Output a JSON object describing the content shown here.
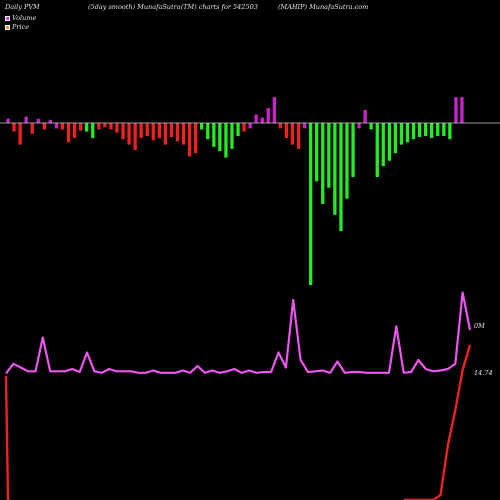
{
  "header": {
    "left": "Daily PVM",
    "smooth": "(5day smooth) MunafaSutra(TM) charts for 542503",
    "right": "(MAHIP) MunafaSutra.com"
  },
  "legend": {
    "volume_label": "Volume",
    "price_label": "Price",
    "volume_color": "#ee33ee",
    "price_color": "#e09a3a"
  },
  "labels": {
    "volume_axis": "0M",
    "price_axis": "14.74"
  },
  "colors": {
    "background": "#000000",
    "up_bar": "#cc22cc",
    "down_bar_red": "#ee2222",
    "down_bar_green": "#22ee22",
    "volume_line": "#ee55ee",
    "price_line": "#ee2222",
    "baseline": "#cccccc"
  },
  "chart_data": {
    "type": "bar",
    "note_units": "relative",
    "bars": [
      {
        "v": 4,
        "c": "m"
      },
      {
        "v": -8,
        "c": "r"
      },
      {
        "v": -20,
        "c": "r"
      },
      {
        "v": 6,
        "c": "m"
      },
      {
        "v": -10,
        "c": "r"
      },
      {
        "v": 4,
        "c": "m"
      },
      {
        "v": -6,
        "c": "r"
      },
      {
        "v": 3,
        "c": "m"
      },
      {
        "v": -5,
        "c": "m"
      },
      {
        "v": -6,
        "c": "r"
      },
      {
        "v": -18,
        "c": "r"
      },
      {
        "v": -14,
        "c": "r"
      },
      {
        "v": -7,
        "c": "r"
      },
      {
        "v": -8,
        "c": "g"
      },
      {
        "v": -14,
        "c": "g"
      },
      {
        "v": -6,
        "c": "r"
      },
      {
        "v": -4,
        "c": "r"
      },
      {
        "v": -6,
        "c": "r"
      },
      {
        "v": -9,
        "c": "r"
      },
      {
        "v": -15,
        "c": "r"
      },
      {
        "v": -20,
        "c": "r"
      },
      {
        "v": -25,
        "c": "r"
      },
      {
        "v": -14,
        "c": "r"
      },
      {
        "v": -12,
        "c": "r"
      },
      {
        "v": -16,
        "c": "r"
      },
      {
        "v": -14,
        "c": "r"
      },
      {
        "v": -20,
        "c": "r"
      },
      {
        "v": -13,
        "c": "r"
      },
      {
        "v": -17,
        "c": "r"
      },
      {
        "v": -20,
        "c": "r"
      },
      {
        "v": -31,
        "c": "r"
      },
      {
        "v": -28,
        "c": "r"
      },
      {
        "v": -6,
        "c": "g"
      },
      {
        "v": -15,
        "c": "g"
      },
      {
        "v": -22,
        "c": "g"
      },
      {
        "v": -26,
        "c": "g"
      },
      {
        "v": -32,
        "c": "g"
      },
      {
        "v": -24,
        "c": "g"
      },
      {
        "v": -12,
        "c": "g"
      },
      {
        "v": -8,
        "c": "r"
      },
      {
        "v": -5,
        "c": "m"
      },
      {
        "v": 8,
        "c": "m"
      },
      {
        "v": 5,
        "c": "m"
      },
      {
        "v": 14,
        "c": "m"
      },
      {
        "v": 24,
        "c": "m"
      },
      {
        "v": -5,
        "c": "r"
      },
      {
        "v": -14,
        "c": "r"
      },
      {
        "v": -20,
        "c": "r"
      },
      {
        "v": -24,
        "c": "r"
      },
      {
        "v": -5,
        "c": "m"
      },
      {
        "v": -150,
        "c": "g"
      },
      {
        "v": -54,
        "c": "g"
      },
      {
        "v": -75,
        "c": "g"
      },
      {
        "v": -60,
        "c": "g"
      },
      {
        "v": -85,
        "c": "g"
      },
      {
        "v": -100,
        "c": "g"
      },
      {
        "v": -70,
        "c": "g"
      },
      {
        "v": -50,
        "c": "g"
      },
      {
        "v": -5,
        "c": "m"
      },
      {
        "v": 12,
        "c": "m"
      },
      {
        "v": -6,
        "c": "g"
      },
      {
        "v": -50,
        "c": "g"
      },
      {
        "v": -40,
        "c": "g"
      },
      {
        "v": -35,
        "c": "g"
      },
      {
        "v": -28,
        "c": "g"
      },
      {
        "v": -20,
        "c": "g"
      },
      {
        "v": -18,
        "c": "g"
      },
      {
        "v": -15,
        "c": "g"
      },
      {
        "v": -13,
        "c": "g"
      },
      {
        "v": -12,
        "c": "g"
      },
      {
        "v": -14,
        "c": "g"
      },
      {
        "v": -12,
        "c": "g"
      },
      {
        "v": -12,
        "c": "g"
      },
      {
        "v": -15,
        "c": "g"
      },
      {
        "v": 24,
        "c": "m"
      },
      {
        "v": 24,
        "c": "m"
      }
    ],
    "volume_line": [
      0.02,
      0.15,
      0.1,
      0.05,
      0.05,
      0.5,
      0.05,
      0.05,
      0.05,
      0.08,
      0.04,
      0.3,
      0.05,
      0.03,
      0.08,
      0.05,
      0.05,
      0.05,
      0.03,
      0.03,
      0.06,
      0.03,
      0.03,
      0.03,
      0.06,
      0.03,
      0.12,
      0.03,
      0.06,
      0.03,
      0.05,
      0.08,
      0.03,
      0.06,
      0.03,
      0.04,
      0.04,
      0.3,
      0.1,
      1.0,
      0.2,
      0.04,
      0.05,
      0.06,
      0.03,
      0.18,
      0.03,
      0.04,
      0.04,
      0.03,
      0.03,
      0.03,
      0.03,
      0.65,
      0.03,
      0.04,
      0.2,
      0.08,
      0.05,
      0.06,
      0.08,
      0.15,
      1.1,
      0.6
    ],
    "price_line": [
      0.0,
      -0.95,
      -0.95,
      -0.95,
      -0.95,
      -0.95,
      -0.95,
      -0.95,
      -0.95,
      -0.95,
      -0.95,
      -0.95,
      -0.95,
      -0.95,
      -0.95,
      -0.95,
      -0.95,
      -0.95,
      -0.95,
      -0.95,
      -0.95,
      -0.95,
      -0.95,
      -0.95,
      -0.95,
      -0.95,
      -0.95,
      -0.95,
      -0.95,
      -0.95,
      -0.95,
      -0.95,
      -0.95,
      -0.95,
      -0.95,
      -0.95,
      -0.95,
      -0.95,
      -0.95,
      -0.95,
      -0.95,
      -0.95,
      -0.95,
      -0.95,
      -0.95,
      -0.95,
      -0.95,
      -0.95,
      -0.95,
      -0.95,
      -0.95,
      -0.95,
      -0.95,
      -0.95,
      -0.95,
      -0.75,
      -0.55,
      -0.45,
      -0.32,
      -0.25,
      -0.15,
      -0.08,
      0.0,
      0.05
    ]
  }
}
